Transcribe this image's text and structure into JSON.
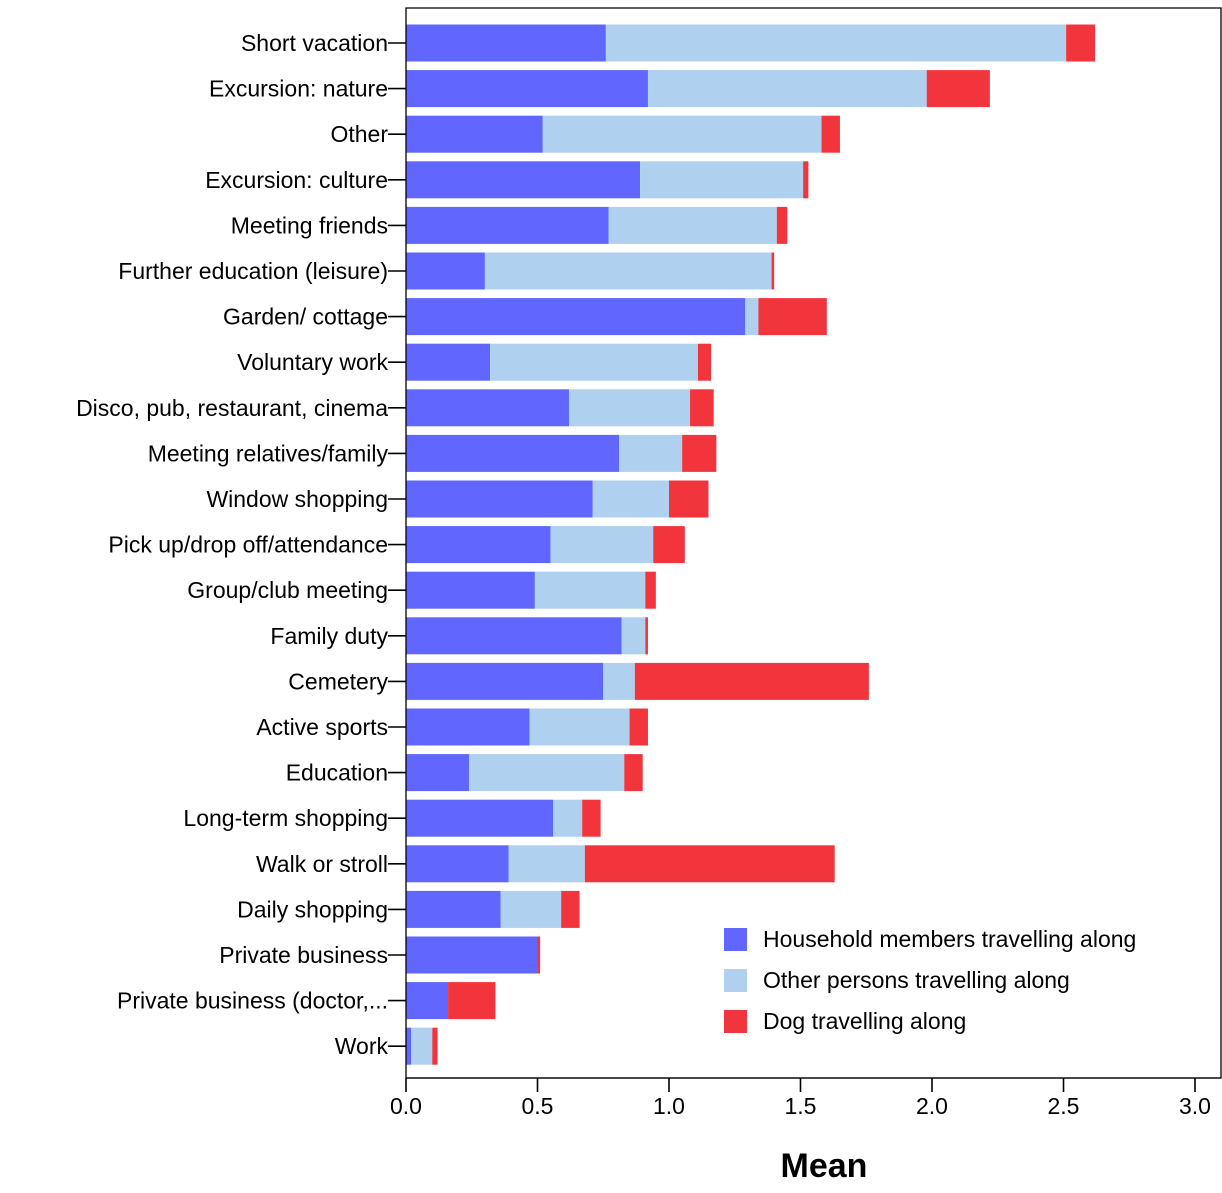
{
  "chart_data": {
    "type": "bar",
    "orientation": "horizontal",
    "stacked": true,
    "title": "",
    "xlabel": "Mean",
    "ylabel": "",
    "xlim": [
      0,
      3.0
    ],
    "xticks": [
      "0.0",
      "0.5",
      "1.0",
      "1.5",
      "2.0",
      "2.5",
      "3.0"
    ],
    "xtick_values": [
      0,
      0.5,
      1.0,
      1.5,
      2.0,
      2.5,
      3.0
    ],
    "grid": false,
    "legend_position": "bottom-right",
    "categories": [
      "Short vacation",
      "Excursion: nature",
      "Other",
      "Excursion: culture",
      "Meeting friends",
      "Further education (leisure)",
      "Garden/ cottage",
      "Voluntary work",
      "Disco, pub, restaurant, cinema",
      "Meeting relatives/family",
      "Window shopping",
      "Pick up/drop off/attendance",
      "Group/club meeting",
      "Family duty",
      "Cemetery",
      "Active sports",
      "Education",
      "Long-term shopping",
      "Walk or stroll",
      "Daily shopping",
      "Private business",
      "Private business (doctor,...",
      "Work"
    ],
    "series": [
      {
        "name": "Household members travelling along",
        "color": "#6166ff",
        "values": [
          0.76,
          0.92,
          0.52,
          0.89,
          0.77,
          0.3,
          1.29,
          0.32,
          0.62,
          0.81,
          0.71,
          0.55,
          0.49,
          0.82,
          0.75,
          0.47,
          0.24,
          0.56,
          0.39,
          0.36,
          0.5,
          0.16,
          0.02
        ]
      },
      {
        "name": "Other persons travelling along",
        "color": "#afd0ef",
        "values": [
          1.75,
          1.06,
          1.06,
          0.62,
          0.64,
          1.09,
          0.05,
          0.79,
          0.46,
          0.24,
          0.29,
          0.39,
          0.42,
          0.09,
          0.12,
          0.38,
          0.59,
          0.11,
          0.29,
          0.23,
          0.0,
          0.0,
          0.08
        ]
      },
      {
        "name": "Dog travelling along",
        "color": "#f2343d",
        "values": [
          0.11,
          0.24,
          0.07,
          0.02,
          0.04,
          0.01,
          0.26,
          0.05,
          0.09,
          0.13,
          0.15,
          0.12,
          0.04,
          0.01,
          0.89,
          0.07,
          0.07,
          0.07,
          0.95,
          0.07,
          0.01,
          0.18,
          0.02
        ]
      }
    ]
  }
}
